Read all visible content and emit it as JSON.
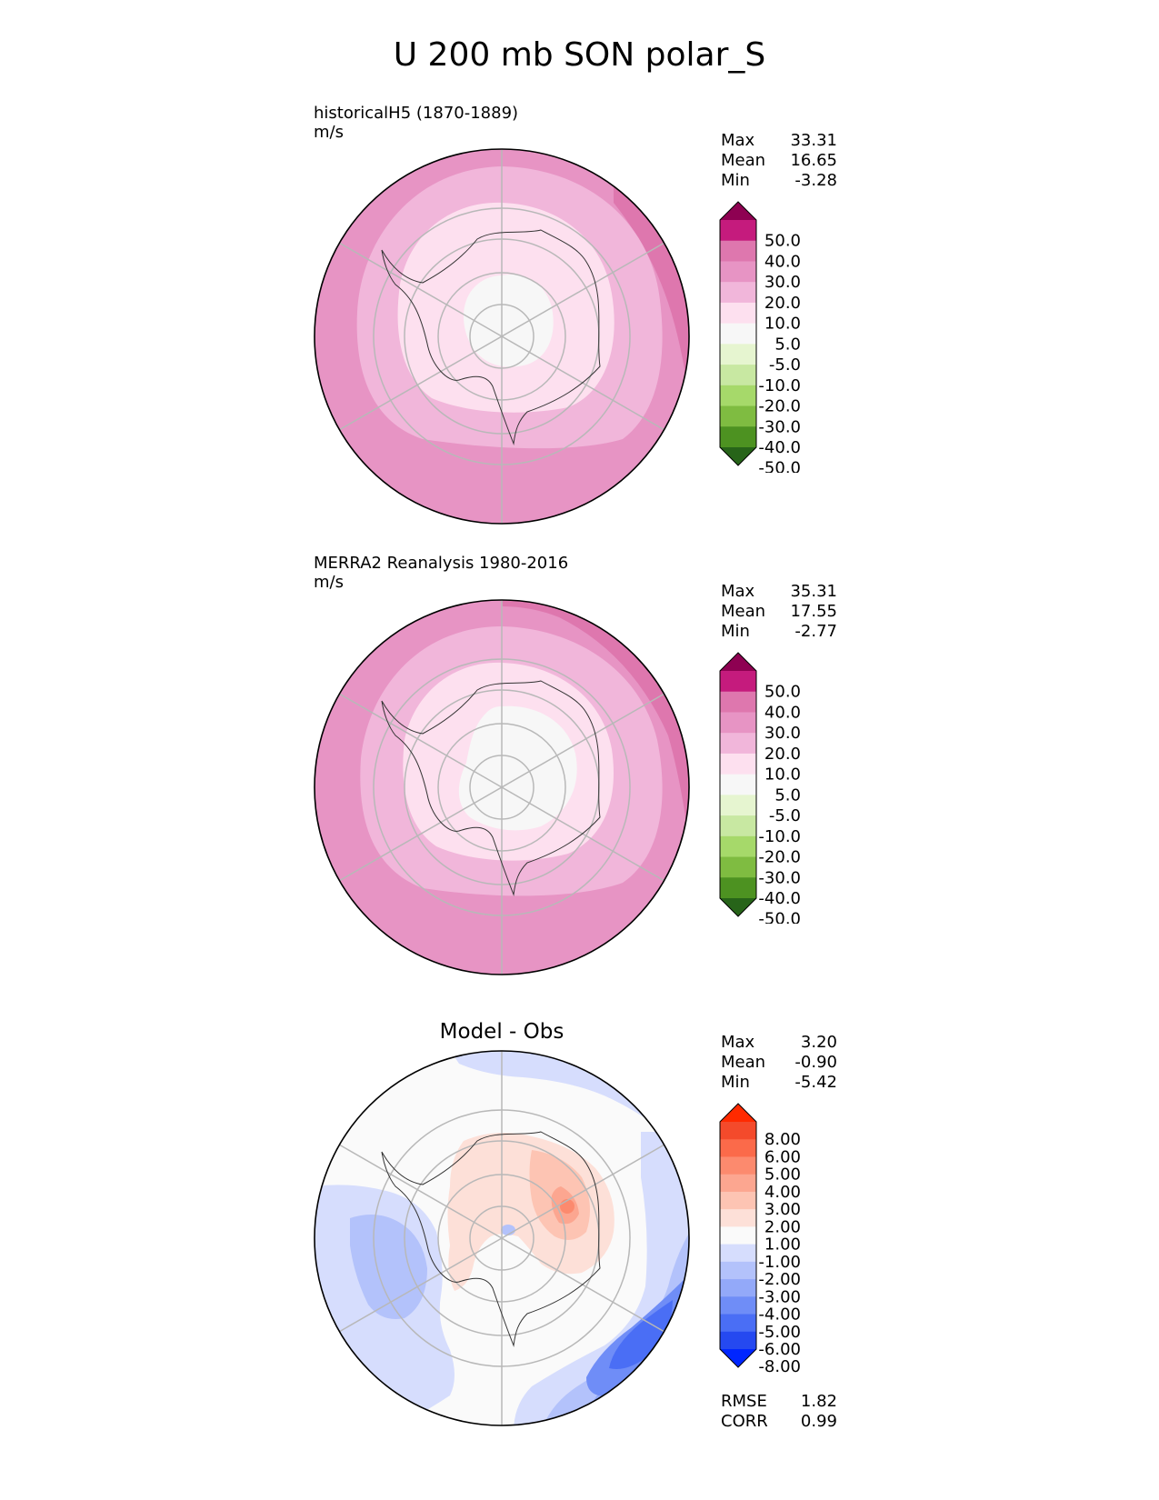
{
  "title": "U 200 mb SON polar_S",
  "panels": [
    {
      "label": "historicalH5 (1870-1889)",
      "units": "m/s",
      "stats": [
        {
          "k": "Max",
          "v": "33.31"
        },
        {
          "k": "Mean",
          "v": "16.65"
        },
        {
          "k": "Min",
          "v": "-3.28"
        }
      ],
      "colorbar": {
        "colors": [
          "#276419",
          "#4d9221",
          "#7fbc41",
          "#a6d96a",
          "#c8e8a2",
          "#e6f5d0",
          "#f7f7f7",
          "#fde0ef",
          "#f1b6da",
          "#e794c4",
          "#de77ae",
          "#c51b7d",
          "#8e0152"
        ],
        "ticks": [
          "-50.0",
          "-40.0",
          "-30.0",
          "-20.0",
          "-10.0",
          "-5.0",
          "5.0",
          "10.0",
          "20.0",
          "30.0",
          "40.0",
          "50.0"
        ]
      }
    },
    {
      "label": "MERRA2 Reanalysis 1980-2016",
      "units": "m/s",
      "stats": [
        {
          "k": "Max",
          "v": "35.31"
        },
        {
          "k": "Mean",
          "v": "17.55"
        },
        {
          "k": "Min",
          "v": "-2.77"
        }
      ],
      "colorbar": {
        "colors": [
          "#276419",
          "#4d9221",
          "#7fbc41",
          "#a6d96a",
          "#c8e8a2",
          "#e6f5d0",
          "#f7f7f7",
          "#fde0ef",
          "#f1b6da",
          "#e794c4",
          "#de77ae",
          "#c51b7d",
          "#8e0152"
        ],
        "ticks": [
          "-50.0",
          "-40.0",
          "-30.0",
          "-20.0",
          "-10.0",
          "-5.0",
          "5.0",
          "10.0",
          "20.0",
          "30.0",
          "40.0",
          "50.0"
        ]
      }
    },
    {
      "title": "Model - Obs",
      "stats": [
        {
          "k": "Max",
          "v": "3.20"
        },
        {
          "k": "Mean",
          "v": "-0.90"
        },
        {
          "k": "Min",
          "v": "-5.42"
        }
      ],
      "extra_stats": [
        {
          "k": "RMSE",
          "v": "1.82"
        },
        {
          "k": "CORR",
          "v": "0.99"
        }
      ],
      "colorbar": {
        "colors": [
          "#0026ff",
          "#2549f0",
          "#4a6ef5",
          "#6f8df7",
          "#93a9f9",
          "#b3c2fb",
          "#d6ddfd",
          "#fafafa",
          "#fde0d8",
          "#fdc4b3",
          "#fca690",
          "#fc8a6e",
          "#fb6a4a",
          "#f44a2b",
          "#ff2a00"
        ],
        "ticks": [
          "-8.00",
          "-6.00",
          "-5.00",
          "-4.00",
          "-3.00",
          "-2.00",
          "-1.00",
          "1.00",
          "2.00",
          "3.00",
          "4.00",
          "5.00",
          "6.00",
          "8.00"
        ]
      }
    }
  ],
  "chart_data": [
    {
      "type": "heatmap",
      "projection": "south polar stereographic",
      "title": "historicalH5 (1870-1889)",
      "units": "m/s",
      "stats": {
        "max": 33.31,
        "mean": 16.65,
        "min": -3.28
      },
      "levels": [
        -50,
        -40,
        -30,
        -20,
        -10,
        -5,
        5,
        10,
        20,
        30,
        40,
        50
      ]
    },
    {
      "type": "heatmap",
      "projection": "south polar stereographic",
      "title": "MERRA2 Reanalysis 1980-2016",
      "units": "m/s",
      "stats": {
        "max": 35.31,
        "mean": 17.55,
        "min": -2.77
      },
      "levels": [
        -50,
        -40,
        -30,
        -20,
        -10,
        -5,
        5,
        10,
        20,
        30,
        40,
        50
      ]
    },
    {
      "type": "heatmap",
      "projection": "south polar stereographic",
      "title": "Model - Obs",
      "stats": {
        "max": 3.2,
        "mean": -0.9,
        "min": -5.42,
        "rmse": 1.82,
        "corr": 0.99
      },
      "levels": [
        -8,
        -6,
        -5,
        -4,
        -3,
        -2,
        -1,
        1,
        2,
        3,
        4,
        5,
        6,
        8
      ]
    }
  ]
}
